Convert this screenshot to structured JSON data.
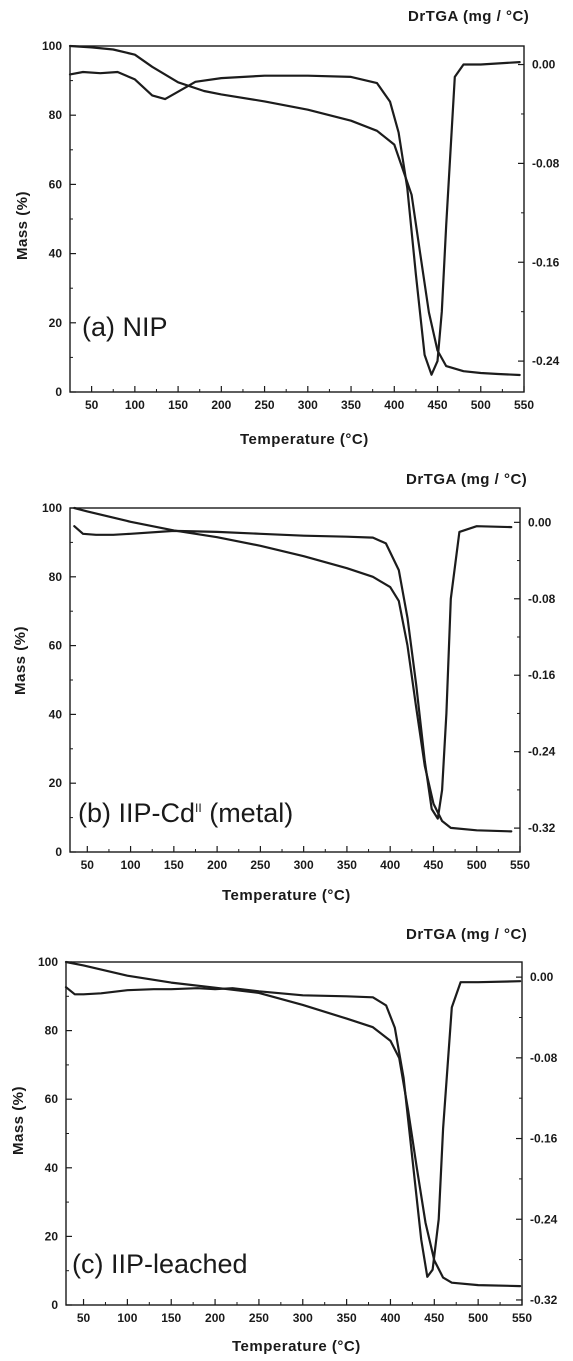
{
  "colors": {
    "line": "#1c1c1c",
    "axis": "#1a1a1a",
    "background": "#ffffff"
  },
  "chart_data": [
    {
      "type": "line",
      "label": "(a) NIP",
      "xlabel": "Temperature (°C)",
      "ylabel": "Mass (%)",
      "y2label": "DrTGA (mg / °C)",
      "xlim": [
        25,
        550
      ],
      "ylim": [
        0,
        100
      ],
      "y2lim": [
        -0.265,
        0.015
      ],
      "xticks": [
        "50",
        "100",
        "150",
        "200",
        "250",
        "300",
        "350",
        "400",
        "450",
        "500",
        "550"
      ],
      "yticks": [
        "0",
        "20",
        "40",
        "60",
        "80",
        "100"
      ],
      "y2ticks": [
        "0.00",
        "-0.08",
        "-0.16",
        "-0.24"
      ],
      "series": [
        {
          "axis": "left",
          "x": [
            25,
            50,
            75,
            100,
            120,
            150,
            180,
            200,
            250,
            300,
            350,
            380,
            400,
            420,
            430,
            440,
            450,
            460,
            480,
            500,
            520,
            545
          ],
          "y": [
            100,
            99.6,
            99,
            97.5,
            94,
            89.5,
            87,
            86,
            84,
            81.6,
            78.4,
            75.5,
            71.5,
            57,
            40,
            23,
            12,
            7.5,
            6,
            5.5,
            5.2,
            4.9
          ]
        },
        {
          "axis": "right",
          "x": [
            25,
            40,
            60,
            80,
            100,
            120,
            135,
            150,
            170,
            200,
            250,
            300,
            350,
            380,
            395,
            405,
            415,
            425,
            435,
            443,
            450,
            455,
            460,
            470,
            480,
            500,
            545
          ],
          "y": [
            -0.008,
            -0.006,
            -0.007,
            -0.006,
            -0.012,
            -0.025,
            -0.028,
            -0.022,
            -0.014,
            -0.011,
            -0.009,
            -0.009,
            -0.01,
            -0.015,
            -0.03,
            -0.055,
            -0.1,
            -0.17,
            -0.235,
            -0.251,
            -0.24,
            -0.2,
            -0.13,
            -0.01,
            0.0,
            0.0,
            0.002
          ]
        }
      ]
    },
    {
      "type": "line",
      "label": "(b) IIP-Cd",
      "label_sup": "II",
      "label_tail": " (metal)",
      "xlabel": "Temperature (°C)",
      "ylabel": "Mass (%)",
      "y2label": "DrTGA (mg / °C)",
      "xlim": [
        30,
        550
      ],
      "ylim": [
        0,
        100
      ],
      "y2lim": [
        -0.345,
        0.015
      ],
      "xticks": [
        "50",
        "100",
        "150",
        "200",
        "250",
        "300",
        "350",
        "400",
        "450",
        "500",
        "550"
      ],
      "yticks": [
        "0",
        "20",
        "40",
        "60",
        "80",
        "100"
      ],
      "y2ticks": [
        "0.00",
        "-0.08",
        "-0.16",
        "-0.24",
        "-0.32"
      ],
      "series": [
        {
          "axis": "left",
          "x": [
            35,
            50,
            100,
            150,
            200,
            250,
            300,
            350,
            380,
            400,
            410,
            420,
            430,
            440,
            450,
            460,
            470,
            500,
            540
          ],
          "y": [
            100,
            99,
            96,
            93.5,
            91.5,
            89,
            86,
            82.5,
            80,
            77,
            73,
            60,
            42,
            25,
            14,
            9,
            7,
            6.3,
            6
          ]
        },
        {
          "axis": "right",
          "x": [
            35,
            45,
            60,
            80,
            100,
            150,
            200,
            250,
            300,
            350,
            380,
            395,
            410,
            420,
            430,
            440,
            448,
            455,
            460,
            465,
            470,
            480,
            500,
            540
          ],
          "y": [
            -0.004,
            -0.012,
            -0.013,
            -0.013,
            -0.012,
            -0.009,
            -0.01,
            -0.012,
            -0.014,
            -0.015,
            -0.016,
            -0.022,
            -0.05,
            -0.1,
            -0.17,
            -0.25,
            -0.3,
            -0.31,
            -0.28,
            -0.2,
            -0.08,
            -0.01,
            -0.004,
            -0.005
          ]
        }
      ]
    },
    {
      "type": "line",
      "label": "(c) IIP-leached",
      "xlabel": "Temperature (°C)",
      "ylabel": "Mass (%)",
      "y2label": "DrTGA (mg / °C)",
      "xlim": [
        30,
        550
      ],
      "ylim": [
        0,
        100
      ],
      "y2lim": [
        -0.325,
        0.015
      ],
      "xticks": [
        "50",
        "100",
        "150",
        "200",
        "250",
        "300",
        "350",
        "400",
        "450",
        "500",
        "550"
      ],
      "yticks": [
        "0",
        "20",
        "40",
        "60",
        "80",
        "100"
      ],
      "y2ticks": [
        "0.00",
        "-0.08",
        "-0.16",
        "-0.24",
        "-0.32"
      ],
      "series": [
        {
          "axis": "left",
          "x": [
            30,
            50,
            100,
            150,
            200,
            250,
            300,
            350,
            380,
            400,
            410,
            420,
            430,
            440,
            450,
            460,
            470,
            500,
            548
          ],
          "y": [
            100,
            99,
            96,
            94,
            92.5,
            91,
            87.5,
            83.5,
            81,
            77,
            72,
            57,
            40,
            24,
            13,
            8,
            6.5,
            5.8,
            5.5
          ]
        },
        {
          "axis": "right",
          "x": [
            30,
            40,
            50,
            70,
            100,
            130,
            150,
            180,
            200,
            220,
            250,
            300,
            350,
            380,
            395,
            405,
            415,
            425,
            435,
            442,
            448,
            455,
            460,
            470,
            480,
            500,
            548
          ],
          "y": [
            -0.01,
            -0.017,
            -0.017,
            -0.016,
            -0.013,
            -0.012,
            -0.012,
            -0.011,
            -0.012,
            -0.011,
            -0.014,
            -0.018,
            -0.019,
            -0.02,
            -0.028,
            -0.05,
            -0.1,
            -0.18,
            -0.26,
            -0.297,
            -0.29,
            -0.24,
            -0.15,
            -0.03,
            -0.005,
            -0.005,
            -0.004
          ]
        }
      ]
    }
  ]
}
